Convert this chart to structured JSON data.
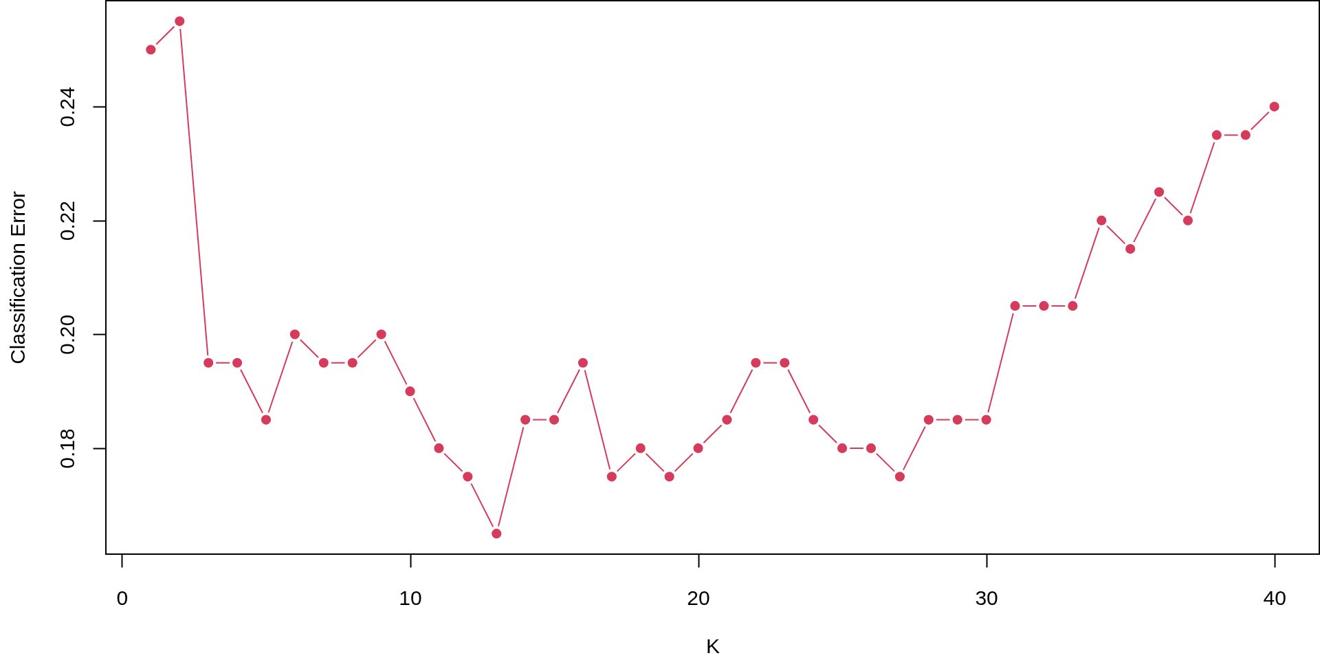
{
  "chart_data": {
    "type": "line",
    "xlabel": "K",
    "ylabel": "Classification Error",
    "x": [
      1,
      2,
      3,
      4,
      5,
      6,
      7,
      8,
      9,
      10,
      11,
      12,
      13,
      14,
      15,
      16,
      17,
      18,
      19,
      20,
      21,
      22,
      23,
      24,
      25,
      26,
      27,
      28,
      29,
      30,
      31,
      32,
      33,
      34,
      35,
      36,
      37,
      38,
      39,
      40
    ],
    "series": [
      {
        "color": "#d63b5b",
        "values": [
          0.25,
          0.255,
          0.195,
          0.195,
          0.185,
          0.2,
          0.195,
          0.195,
          0.2,
          0.19,
          0.18,
          0.175,
          0.165,
          0.185,
          0.185,
          0.195,
          0.175,
          0.18,
          0.175,
          0.18,
          0.185,
          0.195,
          0.195,
          0.185,
          0.18,
          0.18,
          0.175,
          0.185,
          0.185,
          0.185,
          0.205,
          0.205,
          0.205,
          0.22,
          0.215,
          0.225,
          0.22,
          0.235,
          0.235,
          0.24
        ]
      }
    ],
    "xlim": [
      -0.56,
      41.56
    ],
    "ylim": [
      0.1614,
      0.2586
    ],
    "xticks": [
      0,
      10,
      20,
      30,
      40
    ],
    "yticks": [
      0.18,
      {
        "value": 0.2,
        "label": "0.20"
      },
      0.22,
      0.24
    ],
    "marker": "circle",
    "line_style": "solid"
  }
}
